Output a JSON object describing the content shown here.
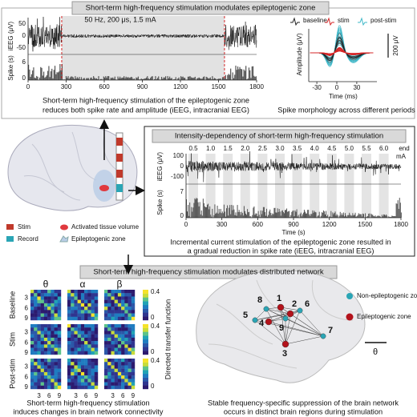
{
  "panel1": {
    "header": "Short-term high-frequency stimulation modulates epileptogenic zone",
    "stim_params": "50 Hz, 200 μs, 1.5 mA",
    "ieeg_label": "iEEG (μV)",
    "ieeg_ticks": [
      "50",
      "0",
      "-50"
    ],
    "spike_label": "Spike (s)",
    "spike_ticks": [
      "6",
      "0"
    ],
    "time_ticks": [
      "0",
      "300",
      "600",
      "900",
      "1200",
      "1500",
      "1800"
    ],
    "caption": [
      "Short-term high-frequency stimulation of the epileptogenic zone",
      "reduces both spike rate and amplitude (iEEG, intracranial EEG)"
    ],
    "morph": {
      "legend": [
        "baseline",
        "stim",
        "post-stim"
      ],
      "scale": "200 μV",
      "ylabel": "Amplitude (μV)",
      "xticks": [
        "-30",
        "0",
        "30"
      ],
      "xlabel": "Time (ms)",
      "caption": "Spike morphology across different periods"
    }
  },
  "legend": {
    "stim": "Stim",
    "record": "Record",
    "activated": "Activated tissue volume",
    "ez": "Epileptogenic zone"
  },
  "panel2": {
    "header": "Intensity-dependency of short-term high-frequency stimulation",
    "currents": [
      "0.5",
      "1.0",
      "1.5",
      "2.0",
      "2.5",
      "3.0",
      "3.5",
      "4.0",
      "4.5",
      "5.0",
      "5.5",
      "6.0"
    ],
    "unit": "mA",
    "end": "end",
    "ieeg_label": "iEEG (μV)",
    "ieeg_ticks": [
      "100",
      "0",
      "-100"
    ],
    "spike_label": "Spike (s)",
    "spike_ticks": [
      "7",
      "0"
    ],
    "time_ticks": [
      "0",
      "300",
      "600",
      "900",
      "1200",
      "1500",
      "1800"
    ],
    "xlabel": "Time (s)",
    "caption": [
      "Incremental current stimulation of the epileptogenic zone resulted in",
      "a gradual reduction in spike rate (iEEG, intracranial EEG)"
    ]
  },
  "panel3": {
    "header": "Short-term high-frequency stimulation modulates distributed network",
    "bands": [
      "θ",
      "α",
      "β"
    ],
    "rows": [
      "Baseline",
      "Stim",
      "Post-stim"
    ],
    "matrix_ticks": [
      "3",
      "6",
      "9"
    ],
    "colorbar_ticks": [
      "0.4",
      "0"
    ],
    "colorbar_label": "Directed transfer function",
    "caption": [
      "Short-term high-frequency stimulation",
      "induces changes in brain network connectivity"
    ],
    "nodes": [
      "1",
      "2",
      "3",
      "4",
      "5",
      "6",
      "7",
      "8",
      "9"
    ],
    "network_legend": [
      "Non-epileptogenic zone",
      "Epileptogenic zone"
    ],
    "band": "θ",
    "network_caption": [
      "Stable frequency-specific suppression of the brain network",
      "occurs in distinct brain regions during stimulation"
    ]
  }
}
